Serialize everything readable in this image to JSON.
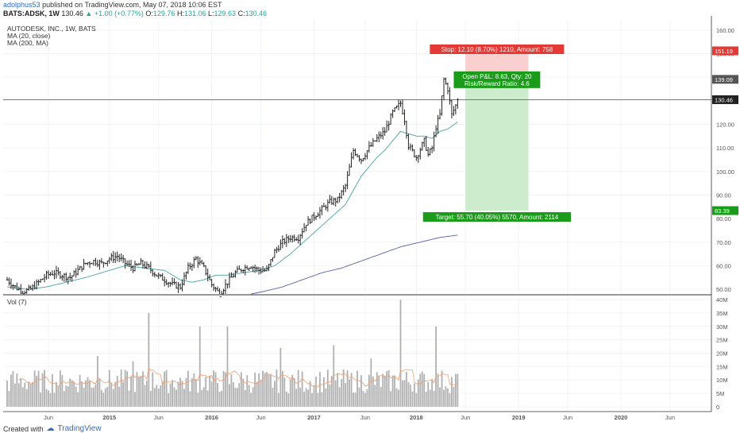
{
  "header": {
    "author": "adolphus53",
    "published": "published on TradingView.com, May 07, 2018 10:06 EST",
    "symbol": "BATS:ADSK, 1W",
    "last": "130.46",
    "change": "+1.00 (+0.77%)",
    "open_label": "O:",
    "open": "129.76",
    "high_label": "H:",
    "high": "131.06",
    "low_label": "L:",
    "low": "129.63",
    "close_label": "C:",
    "close": "130.46"
  },
  "legend": {
    "title": "AUTODESK, INC., 1W, BATS",
    "ma20": "MA (20, close)",
    "ma200": "MA (200, MA)",
    "vol": "Vol (7)"
  },
  "footer": {
    "created_with": "Created with",
    "brand": "TradingView"
  },
  "colors": {
    "bar": "#222222",
    "ma20": "#4aa3a1",
    "ma200": "#5b5fa8",
    "vol_bar": "#b0b0b0",
    "vol_ma": "#f0a070",
    "stop_zone": "#f9cfcf",
    "target_zone": "#cdeccd",
    "stop_label": "#e53935",
    "target_label": "#1a9c1a",
    "pnl_label": "#1a9c1a"
  },
  "chart_data": {
    "type": "ohlc",
    "price_axis": {
      "ticks": [
        50,
        60,
        70,
        80,
        90,
        100,
        110,
        120,
        130,
        140,
        150,
        160
      ],
      "tick_labels": [
        "50.00",
        "60.00",
        "70.00",
        "80.00",
        "90.00",
        "100.00",
        "110.00",
        "120.00",
        "130.00",
        "140.00",
        "150.00",
        "160.00"
      ],
      "range": [
        48,
        164
      ]
    },
    "volume_axis": {
      "ticks": [
        0,
        5,
        10,
        15,
        20,
        25,
        30,
        35,
        40
      ],
      "tick_labels": [
        "0",
        "5M",
        "10M",
        "15M",
        "20M",
        "25M",
        "30M",
        "35M",
        "40M"
      ],
      "range": [
        -1.5,
        41.5
      ]
    },
    "time_axis": {
      "labels": [
        "Jun",
        "2015",
        "Jun",
        "2016",
        "Jun",
        "2017",
        "Jun",
        "2018",
        "Jun",
        "2019",
        "Jun",
        "2020",
        "Jun"
      ],
      "bold": [
        false,
        true,
        false,
        true,
        false,
        true,
        false,
        true,
        false,
        true,
        false,
        true,
        false
      ],
      "positions_weeks": [
        21,
        52,
        77,
        104,
        129,
        156,
        182,
        208,
        233,
        260,
        285,
        312,
        337
      ]
    },
    "price_badges": [
      {
        "label": "151.19",
        "value": 151.19,
        "color": "#e53935"
      },
      {
        "label": "139.09",
        "value": 139.09,
        "color": "#555555"
      },
      {
        "label": "130.46",
        "value": 130.46,
        "color": "#222222"
      },
      {
        "label": "83.39",
        "value": 83.39,
        "color": "#1a9c1a"
      }
    ],
    "current_price": 130.46,
    "position": {
      "entry": 139.09,
      "stop": 151.19,
      "target": 83.39,
      "start_week": 233,
      "end_week": 265,
      "stop_text": "Stop: 12.10 (8.70%) 1210, Amount: 758",
      "pnl_text": "Open P&L: 8.63, Qty: 20",
      "rr_text": "Risk/Reward Ratio: 4.6",
      "target_text": "Target: 55.70 (40.05%) 5570, Amount: 2114"
    },
    "series_anchors": {
      "close": [
        [
          0,
          54
        ],
        [
          4,
          51
        ],
        [
          8,
          49
        ],
        [
          12,
          50
        ],
        [
          16,
          53
        ],
        [
          20,
          56
        ],
        [
          24,
          57
        ],
        [
          28,
          56
        ],
        [
          32,
          55
        ],
        [
          36,
          58
        ],
        [
          40,
          61
        ],
        [
          44,
          62
        ],
        [
          48,
          61
        ],
        [
          52,
          63
        ],
        [
          56,
          64
        ],
        [
          60,
          61
        ],
        [
          64,
          59
        ],
        [
          68,
          61
        ],
        [
          72,
          59
        ],
        [
          76,
          56
        ],
        [
          80,
          54
        ],
        [
          84,
          52
        ],
        [
          88,
          51
        ],
        [
          92,
          59
        ],
        [
          96,
          63
        ],
        [
          100,
          59
        ],
        [
          104,
          52
        ],
        [
          108,
          48
        ],
        [
          112,
          53
        ],
        [
          116,
          57
        ],
        [
          120,
          59
        ],
        [
          124,
          60
        ],
        [
          128,
          58
        ],
        [
          132,
          58
        ],
        [
          136,
          66
        ],
        [
          140,
          70
        ],
        [
          144,
          72
        ],
        [
          148,
          72
        ],
        [
          152,
          78
        ],
        [
          156,
          81
        ],
        [
          160,
          84
        ],
        [
          164,
          87
        ],
        [
          168,
          88
        ],
        [
          172,
          94
        ],
        [
          176,
          109
        ],
        [
          180,
          105
        ],
        [
          184,
          110
        ],
        [
          188,
          114
        ],
        [
          192,
          117
        ],
        [
          196,
          125
        ],
        [
          200,
          129
        ],
        [
          202,
          122
        ],
        [
          204,
          111
        ],
        [
          208,
          106
        ],
        [
          212,
          113
        ],
        [
          214,
          107
        ],
        [
          216,
          110
        ],
        [
          218,
          119
        ],
        [
          220,
          124
        ],
        [
          222,
          139
        ],
        [
          224,
          135
        ],
        [
          226,
          124
        ],
        [
          228,
          128
        ],
        [
          229,
          130.46
        ]
      ],
      "ma20": [
        [
          0,
          51
        ],
        [
          10,
          50
        ],
        [
          20,
          51
        ],
        [
          30,
          53
        ],
        [
          40,
          55
        ],
        [
          52,
          58
        ],
        [
          60,
          60
        ],
        [
          70,
          59
        ],
        [
          80,
          58
        ],
        [
          88,
          54
        ],
        [
          94,
          53
        ],
        [
          100,
          54
        ],
        [
          106,
          56
        ],
        [
          112,
          56
        ],
        [
          120,
          57
        ],
        [
          128,
          58
        ],
        [
          136,
          60
        ],
        [
          144,
          65
        ],
        [
          152,
          71
        ],
        [
          160,
          77
        ],
        [
          168,
          83
        ],
        [
          172,
          86
        ],
        [
          176,
          92
        ],
        [
          180,
          98
        ],
        [
          184,
          102
        ],
        [
          188,
          106
        ],
        [
          192,
          109
        ],
        [
          196,
          113
        ],
        [
          200,
          117
        ],
        [
          204,
          116
        ],
        [
          208,
          115
        ],
        [
          212,
          115
        ],
        [
          216,
          114
        ],
        [
          220,
          117
        ],
        [
          224,
          118
        ],
        [
          229,
          121
        ]
      ],
      "ma200": [
        [
          124,
          48
        ],
        [
          130,
          49
        ],
        [
          140,
          51
        ],
        [
          150,
          54
        ],
        [
          160,
          57
        ],
        [
          170,
          59
        ],
        [
          180,
          62
        ],
        [
          190,
          65
        ],
        [
          200,
          68
        ],
        [
          210,
          70
        ],
        [
          220,
          72
        ],
        [
          229,
          73
        ]
      ],
      "volume_spikes": [
        [
          72,
          35
        ],
        [
          98,
          30
        ],
        [
          112,
          30
        ],
        [
          139,
          22
        ],
        [
          166,
          23
        ],
        [
          200,
          40
        ],
        [
          218,
          30
        ],
        [
          185,
          18
        ],
        [
          64,
          17
        ],
        [
          46,
          19
        ]
      ]
    },
    "weeks_visible": 360,
    "first_week": -2
  }
}
